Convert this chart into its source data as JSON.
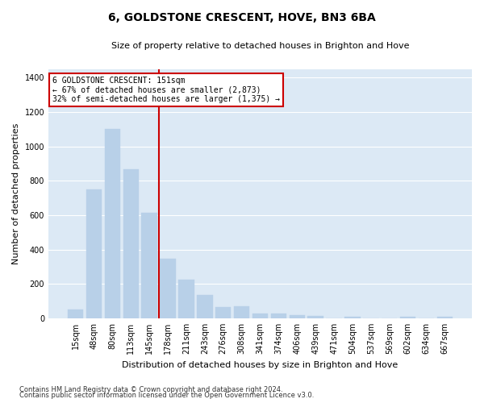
{
  "title": "6, GOLDSTONE CRESCENT, HOVE, BN3 6BA",
  "subtitle": "Size of property relative to detached houses in Brighton and Hove",
  "xlabel": "Distribution of detached houses by size in Brighton and Hove",
  "ylabel": "Number of detached properties",
  "footnote1": "Contains HM Land Registry data © Crown copyright and database right 2024.",
  "footnote2": "Contains public sector information licensed under the Open Government Licence v3.0.",
  "categories": [
    "15sqm",
    "48sqm",
    "80sqm",
    "113sqm",
    "145sqm",
    "178sqm",
    "211sqm",
    "243sqm",
    "276sqm",
    "308sqm",
    "341sqm",
    "374sqm",
    "406sqm",
    "439sqm",
    "471sqm",
    "504sqm",
    "537sqm",
    "569sqm",
    "602sqm",
    "634sqm",
    "667sqm"
  ],
  "values": [
    50,
    750,
    1100,
    865,
    615,
    345,
    225,
    135,
    65,
    70,
    30,
    30,
    20,
    15,
    0,
    10,
    0,
    0,
    10,
    0,
    10
  ],
  "bar_color": "#b8d0e8",
  "bar_edge_color": "#b8d0e8",
  "plot_bg_color": "#dce9f5",
  "fig_bg_color": "#ffffff",
  "grid_color": "#ffffff",
  "vline_color": "#cc0000",
  "vline_x": 4.5,
  "annotation_text": "6 GOLDSTONE CRESCENT: 151sqm\n← 67% of detached houses are smaller (2,873)\n32% of semi-detached houses are larger (1,375) →",
  "annotation_box_edgecolor": "#cc0000",
  "annotation_box_facecolor": "#ffffff",
  "ylim": [
    0,
    1450
  ],
  "yticks": [
    0,
    200,
    400,
    600,
    800,
    1000,
    1200,
    1400
  ],
  "title_fontsize": 10,
  "subtitle_fontsize": 8,
  "ylabel_fontsize": 8,
  "xlabel_fontsize": 8,
  "tick_fontsize": 7,
  "footnote_fontsize": 6,
  "annotation_fontsize": 7
}
